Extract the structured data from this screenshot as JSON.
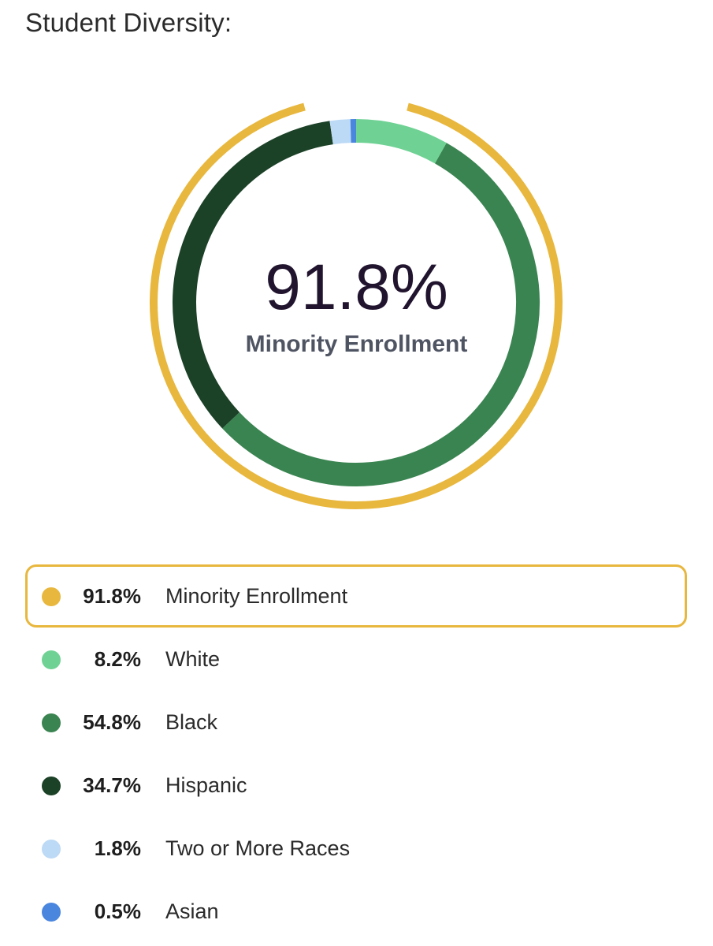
{
  "title": "Student Diversity:",
  "chart_data": {
    "type": "pie",
    "center": {
      "value": "91.8%",
      "label": "Minority Enrollment"
    },
    "outer_ring": {
      "name": "Minority Enrollment",
      "value": 91.8,
      "color": "#e8b73e"
    },
    "slices": [
      {
        "name": "White",
        "value": 8.2,
        "color": "#6fd294"
      },
      {
        "name": "Black",
        "value": 54.8,
        "color": "#3a8451"
      },
      {
        "name": "Hispanic",
        "value": 34.7,
        "color": "#1b4127"
      },
      {
        "name": "Two or More Races",
        "value": 1.8,
        "color": "#bcd9f5"
      },
      {
        "name": "Asian",
        "value": 0.5,
        "color": "#4a86de"
      }
    ]
  },
  "legend": [
    {
      "pct": "91.8%",
      "label": "Minority Enrollment",
      "color": "#e8b73e",
      "highlighted": true
    },
    {
      "pct": "8.2%",
      "label": "White",
      "color": "#6fd294",
      "highlighted": false
    },
    {
      "pct": "54.8%",
      "label": "Black",
      "color": "#3a8451",
      "highlighted": false
    },
    {
      "pct": "34.7%",
      "label": "Hispanic",
      "color": "#1b4127",
      "highlighted": false
    },
    {
      "pct": "1.8%",
      "label": "Two or More Races",
      "color": "#bcd9f5",
      "highlighted": false
    },
    {
      "pct": "0.5%",
      "label": "Asian",
      "color": "#4a86de",
      "highlighted": false
    }
  ]
}
